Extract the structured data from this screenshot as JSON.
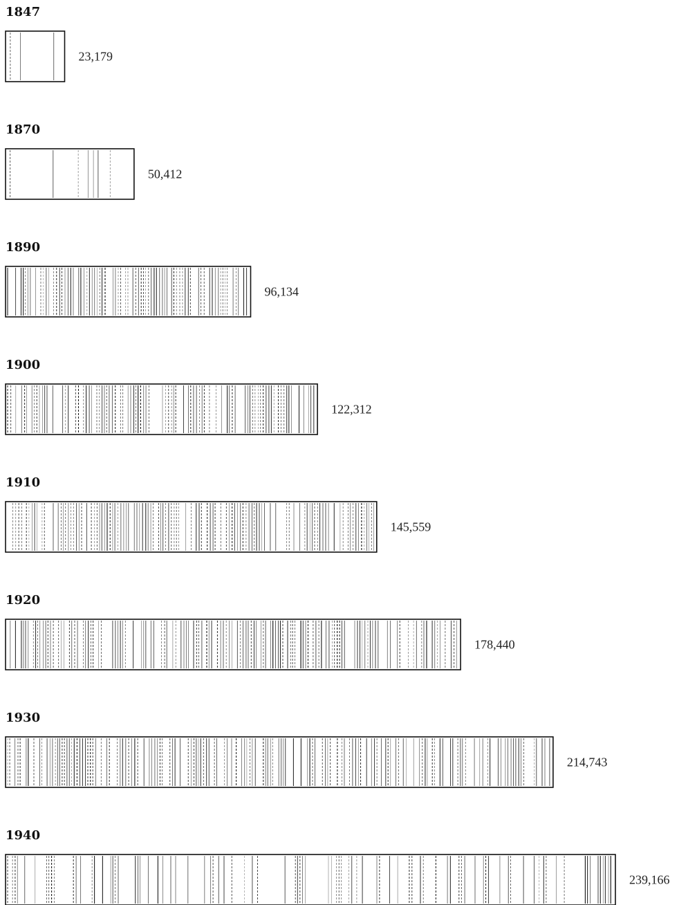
{
  "chart_data": {
    "type": "bar",
    "orientation": "horizontal",
    "categories": [
      "1847",
      "1870",
      "1890",
      "1900",
      "1910",
      "1920",
      "1930",
      "1940"
    ],
    "values": [
      23179,
      50412,
      96134,
      122312,
      145559,
      178440,
      214743,
      239166
    ],
    "value_labels": [
      "23,179",
      "50,412",
      "96,134",
      "122,312",
      "145,559",
      "178,440",
      "214,743",
      "239,166"
    ],
    "title": "",
    "xlabel": "",
    "ylabel": "",
    "legend": "none",
    "grid": false,
    "bar_fill": "vertical-hatching",
    "colors": {
      "ink": "#111111",
      "background": "#ffffff"
    }
  }
}
